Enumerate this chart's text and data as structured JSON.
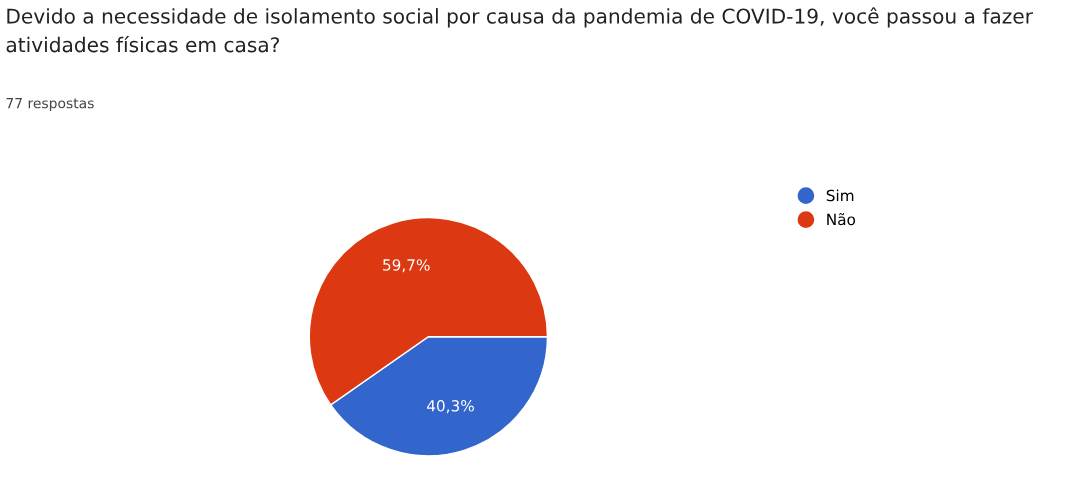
{
  "chart_data": {
    "type": "pie",
    "title": "Devido a necessidade de isolamento social por causa da pandemia de COVID-19, você passou a fazer atividades físicas em casa?",
    "subtitle": "77 respostas",
    "categories": [
      "Sim",
      "Não"
    ],
    "values": [
      40.3,
      59.7
    ],
    "colors": [
      "#3366cc",
      "#dc3912"
    ],
    "value_labels": [
      "40,3%",
      "59,7%"
    ],
    "legend": "top right"
  }
}
